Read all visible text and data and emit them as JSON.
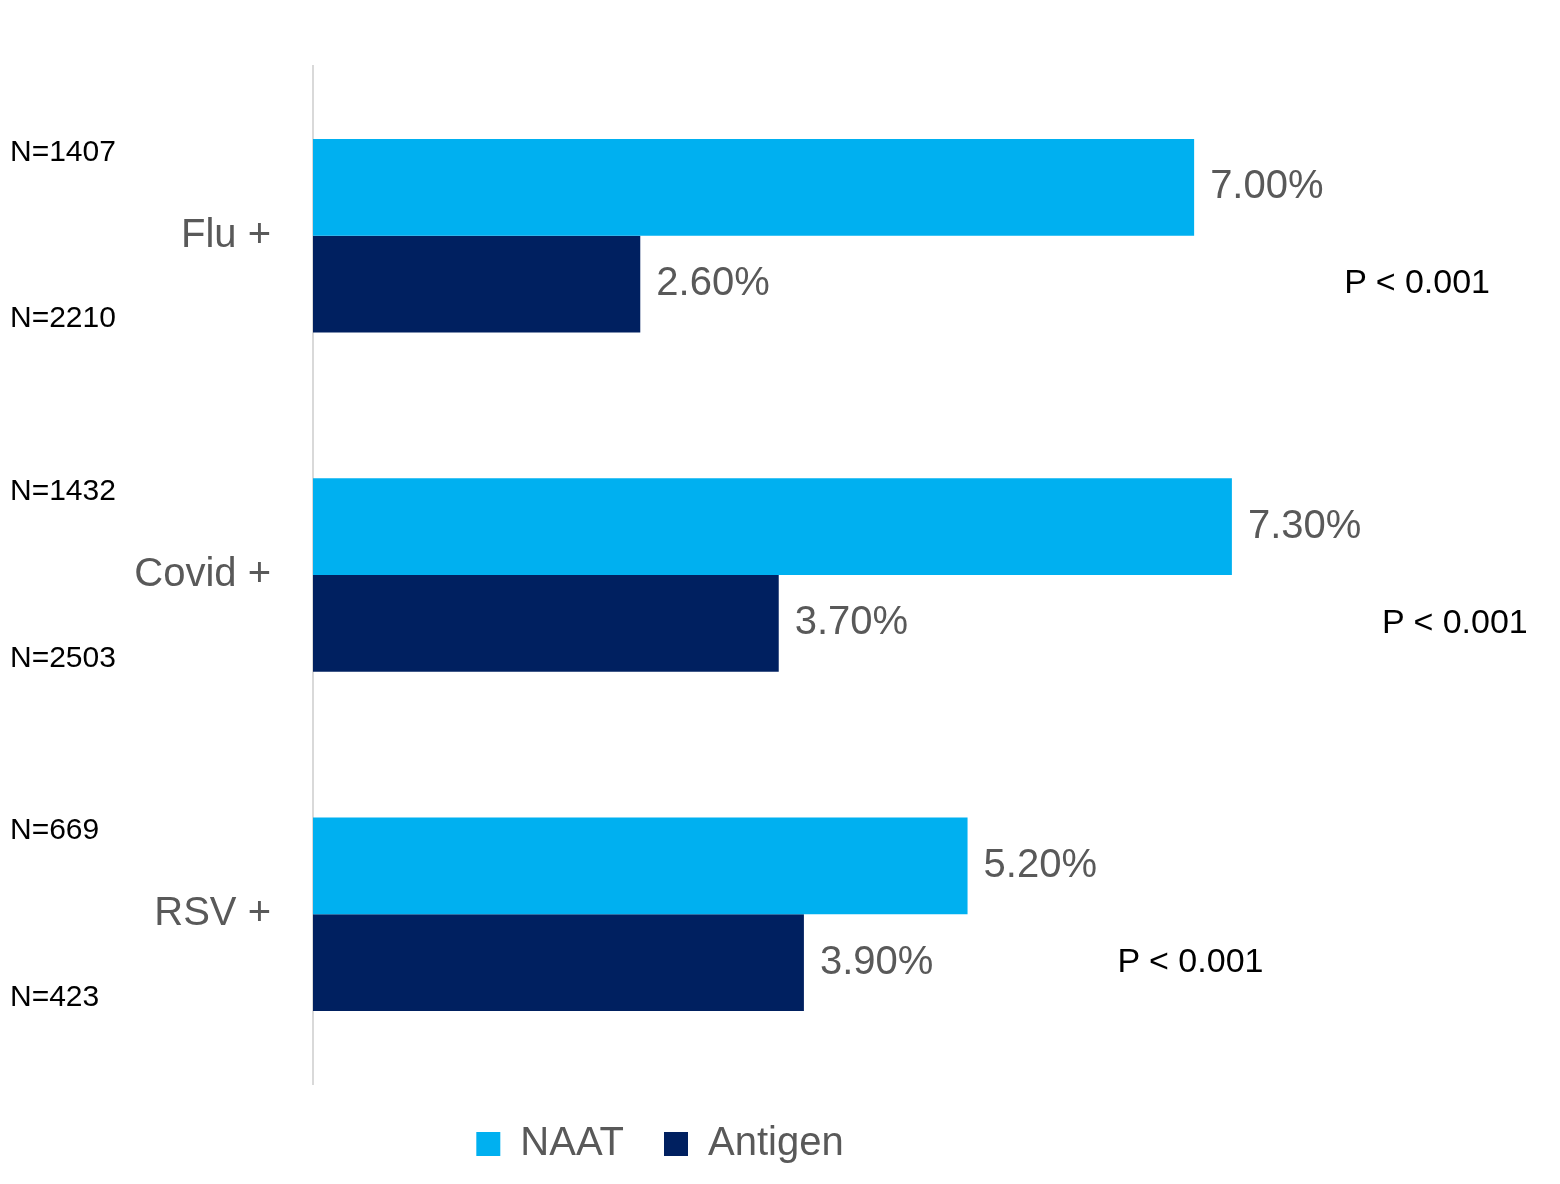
{
  "chart_data": {
    "type": "bar",
    "orientation": "horizontal",
    "categories": [
      "Flu +",
      "Covid +",
      "RSV +"
    ],
    "series": [
      {
        "name": "NAAT",
        "color": "#00b0f0",
        "values": [
          7.0,
          7.3,
          5.2
        ],
        "value_labels": [
          "7.00%",
          "7.30%",
          "5.20%"
        ]
      },
      {
        "name": "Antigen",
        "color": "#002060",
        "values": [
          2.6,
          3.7,
          3.9
        ],
        "value_labels": [
          "2.60%",
          "3.70%",
          "3.90%"
        ]
      }
    ],
    "tick_labels": "y",
    "grid": false,
    "legend": "bottom",
    "annotations": [
      "N=1407",
      "N=2210",
      "N=1432",
      "N=2503",
      "N=669",
      "N=423",
      "P < 0.001",
      "P < 0.001",
      "P < 0.001"
    ]
  }
}
